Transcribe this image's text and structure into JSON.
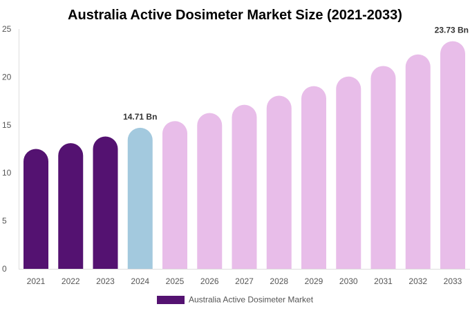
{
  "chart_data": {
    "type": "bar",
    "title": "Australia Active Dosimeter Market Size (2021-2033)",
    "categories": [
      "2021",
      "2022",
      "2023",
      "2024",
      "2025",
      "2026",
      "2027",
      "2028",
      "2029",
      "2030",
      "2031",
      "2032",
      "2033"
    ],
    "series": [
      {
        "name": "Australia Active Dosimeter Market",
        "values": [
          12.5,
          13.1,
          13.8,
          14.71,
          15.4,
          16.25,
          17.1,
          18.05,
          19.05,
          20.05,
          21.15,
          22.35,
          23.73
        ]
      }
    ],
    "data_labels": [
      {
        "category": "2024",
        "text": "14.71 Bn"
      },
      {
        "category": "2033",
        "text": "23.73 Bn"
      }
    ],
    "ylim": [
      0,
      25
    ],
    "yticks": [
      0,
      5,
      10,
      15,
      20,
      25
    ],
    "grid": false,
    "legend_position": "bottom",
    "colors": {
      "historical": "#541271",
      "base_year": "#a3c9de",
      "forecast": "#e8bde9"
    },
    "color_by_category": [
      "historical",
      "historical",
      "historical",
      "base_year",
      "forecast",
      "forecast",
      "forecast",
      "forecast",
      "forecast",
      "forecast",
      "forecast",
      "forecast",
      "forecast"
    ]
  }
}
